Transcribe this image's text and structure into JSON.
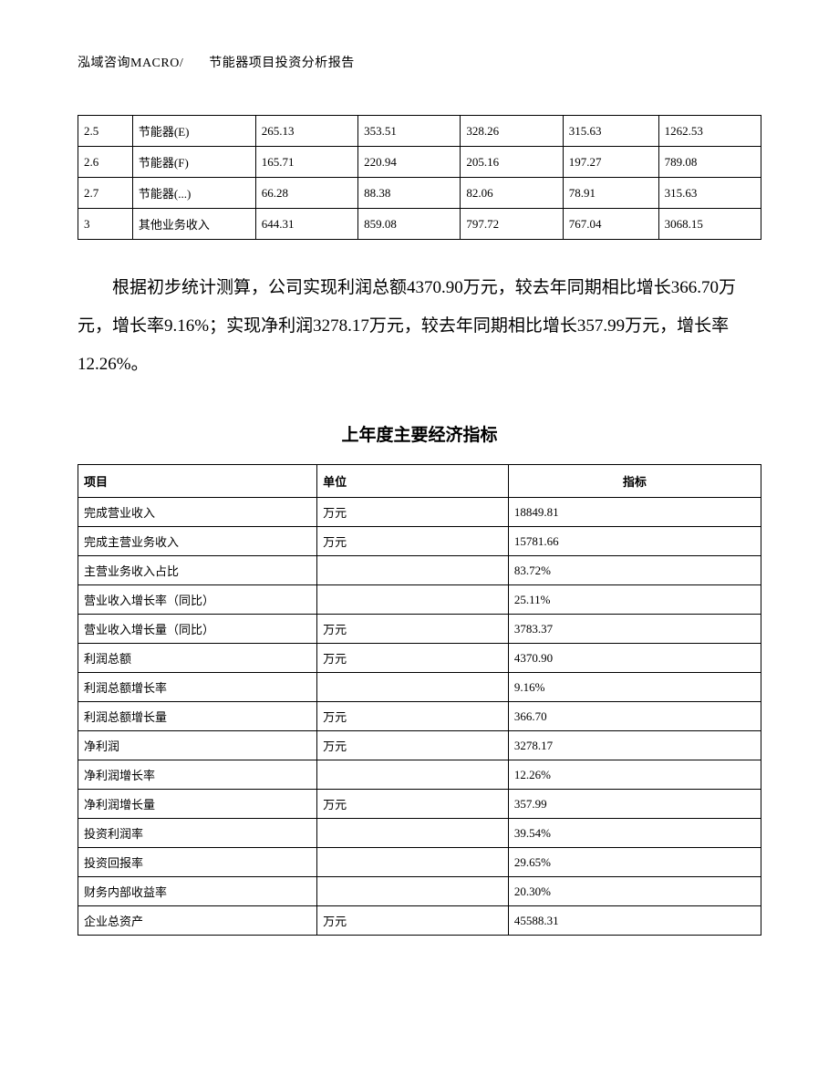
{
  "header": {
    "company": "泓域咨询MACRO/",
    "title": "节能器项目投资分析报告"
  },
  "top_table": {
    "rows": [
      [
        "2.5",
        "节能器(E)",
        "265.13",
        "353.51",
        "328.26",
        "315.63",
        "1262.53"
      ],
      [
        "2.6",
        "节能器(F)",
        "165.71",
        "220.94",
        "205.16",
        "197.27",
        "789.08"
      ],
      [
        "2.7",
        "节能器(...)",
        "66.28",
        "88.38",
        "82.06",
        "78.91",
        "315.63"
      ],
      [
        "3",
        "其他业务收入",
        "644.31",
        "859.08",
        "797.72",
        "767.04",
        "3068.15"
      ]
    ]
  },
  "body_text": "根据初步统计测算，公司实现利润总额4370.90万元，较去年同期相比增长366.70万元，增长率9.16%；实现净利润3278.17万元，较去年同期相比增长357.99万元，增长率12.26%。",
  "section_title": "上年度主要经济指标",
  "indicator_table": {
    "headers": [
      "项目",
      "单位",
      "指标"
    ],
    "rows": [
      [
        "完成营业收入",
        "万元",
        "18849.81"
      ],
      [
        "完成主营业务收入",
        "万元",
        "15781.66"
      ],
      [
        "主营业务收入占比",
        "",
        "83.72%"
      ],
      [
        "营业收入增长率（同比）",
        "",
        "25.11%"
      ],
      [
        "营业收入增长量（同比）",
        "万元",
        "3783.37"
      ],
      [
        "利润总额",
        "万元",
        "4370.90"
      ],
      [
        "利润总额增长率",
        "",
        "9.16%"
      ],
      [
        "利润总额增长量",
        "万元",
        "366.70"
      ],
      [
        "净利润",
        "万元",
        "3278.17"
      ],
      [
        "净利润增长率",
        "",
        "12.26%"
      ],
      [
        "净利润增长量",
        "万元",
        "357.99"
      ],
      [
        "投资利润率",
        "",
        "39.54%"
      ],
      [
        "投资回报率",
        "",
        "29.65%"
      ],
      [
        "财务内部收益率",
        "",
        "20.30%"
      ],
      [
        "企业总资产",
        "万元",
        "45588.31"
      ]
    ]
  }
}
